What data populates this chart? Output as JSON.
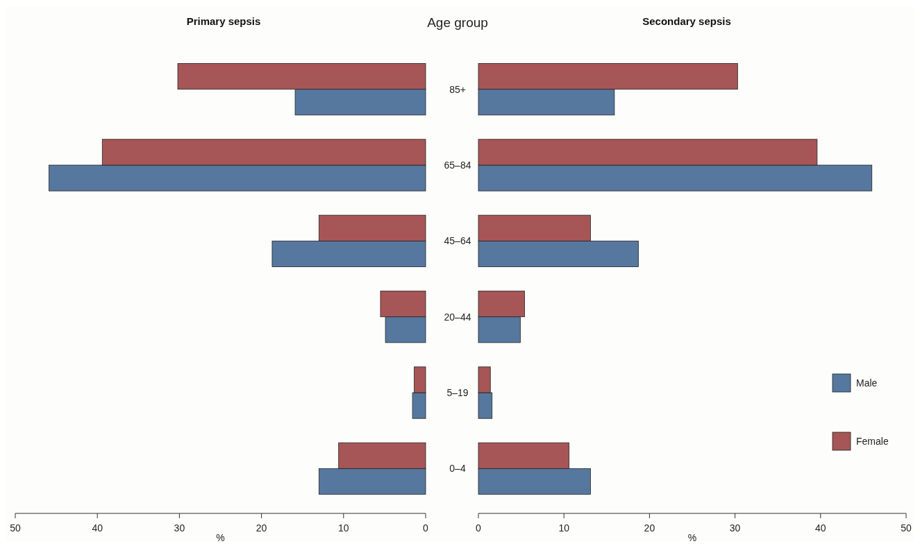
{
  "chart_data": [
    {
      "type": "bar",
      "orientation": "horizontal",
      "title": "Primary sepsis",
      "xlabel": "%",
      "ylabel": "Age group",
      "categories": [
        "85+",
        "65–84",
        "45–64",
        "20–44",
        "5–19",
        "0–4"
      ],
      "xlim": [
        50,
        0
      ],
      "xticks": [
        50,
        40,
        30,
        20,
        10,
        0
      ],
      "grid": false,
      "legend": false,
      "series": [
        {
          "color": "#56789f",
          "values": [
            15.9,
            45.9,
            18.7,
            4.9,
            1.6,
            13.0
          ]
        },
        {
          "color": "#a65656",
          "values": [
            30.2,
            39.4,
            13.0,
            5.5,
            1.4,
            10.6
          ]
        }
      ]
    },
    {
      "type": "bar",
      "orientation": "horizontal",
      "title": "Secondary sepsis",
      "xlabel": "%",
      "categories": [
        null,
        null,
        null,
        null,
        null,
        null
      ],
      "xlim": [
        0,
        50
      ],
      "xticks": [
        0,
        10,
        20,
        30,
        40,
        50
      ],
      "tick_labels": "x",
      "grid": false,
      "legend": "right",
      "series": [
        {
          "name": "Male",
          "color": "#56789f",
          "values": [
            15.9,
            46.0,
            18.7,
            4.9,
            1.6,
            13.1
          ]
        },
        {
          "name": "Female",
          "color": "#a65656",
          "values": [
            30.3,
            39.6,
            13.1,
            5.4,
            1.4,
            10.6
          ]
        }
      ]
    }
  ]
}
